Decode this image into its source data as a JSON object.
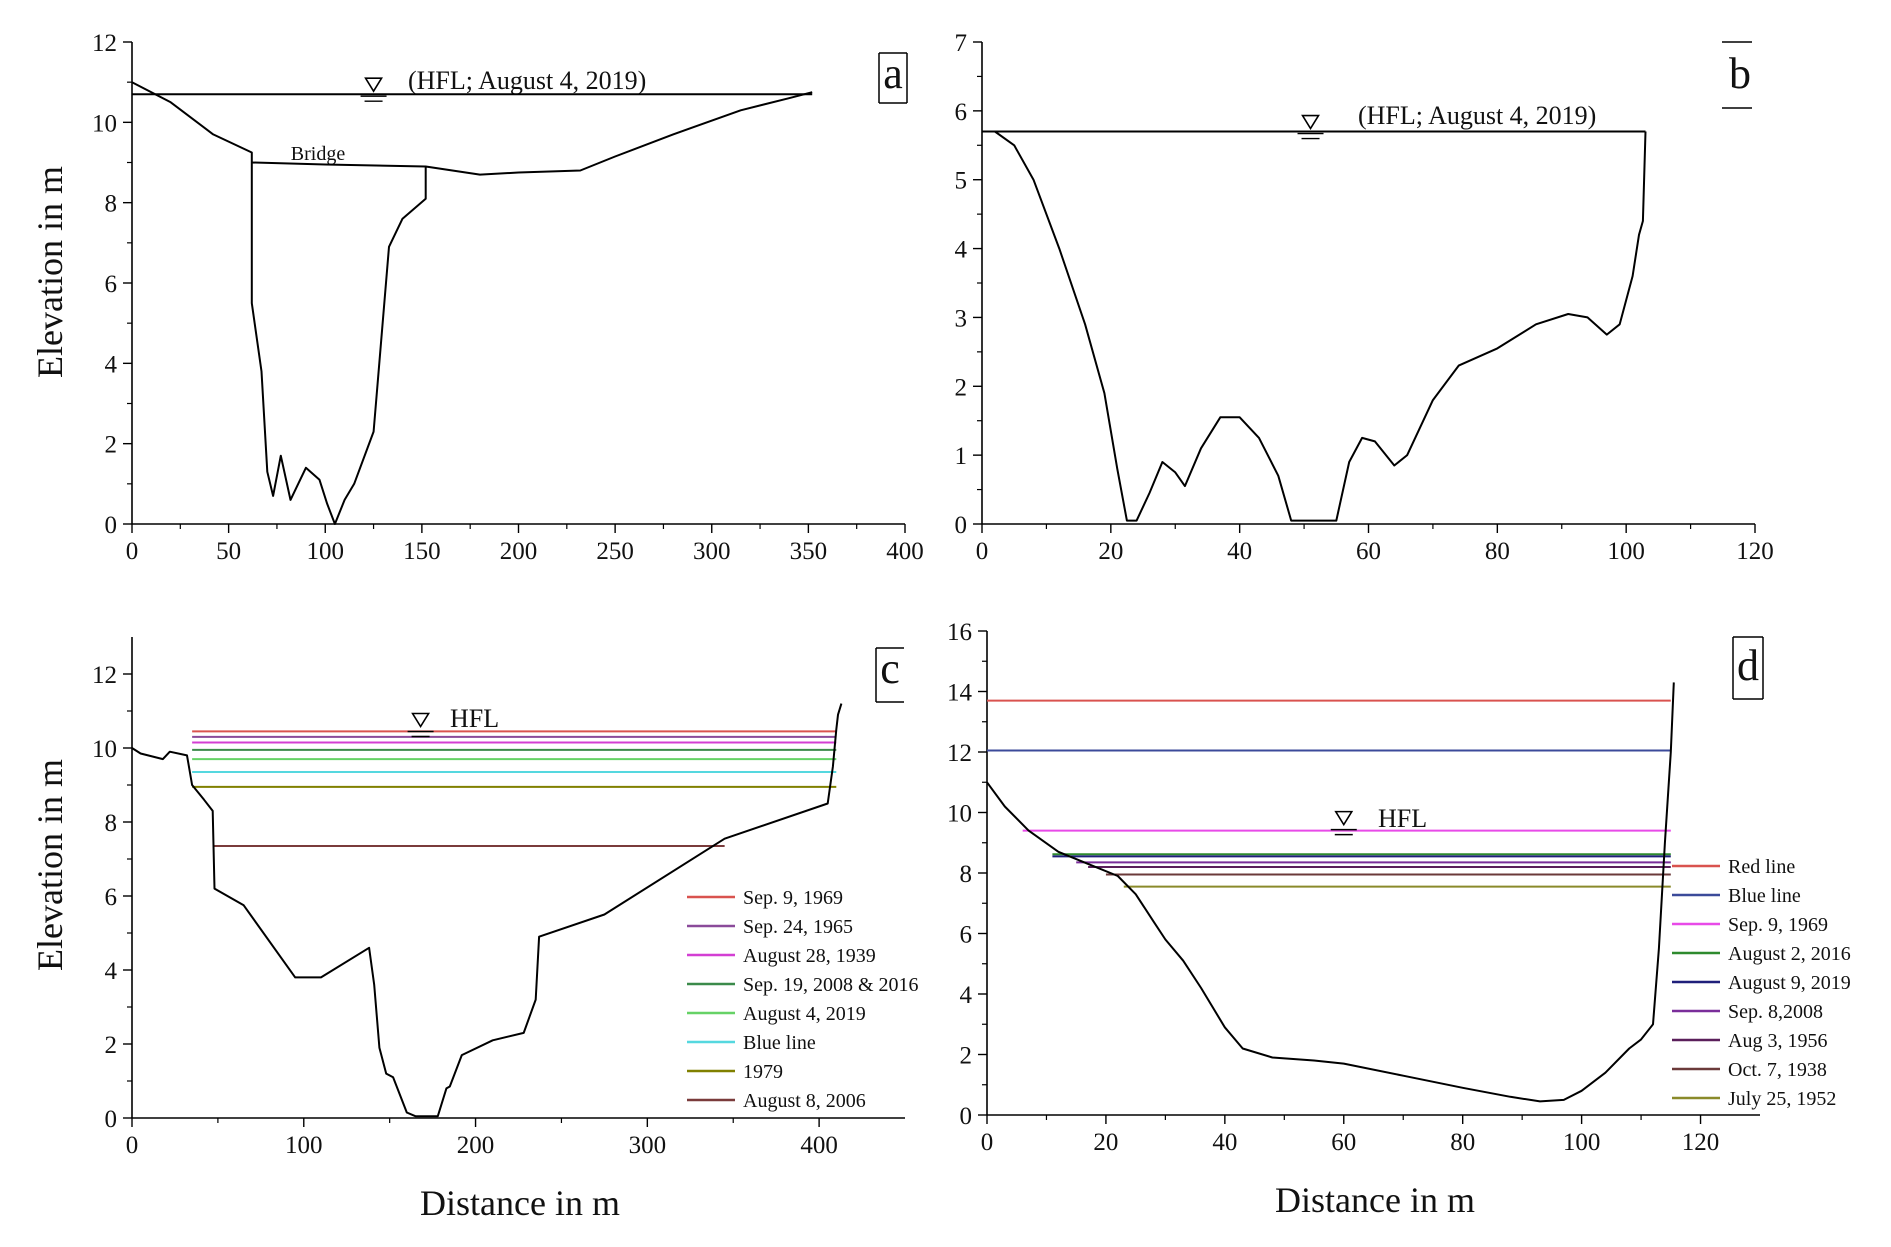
{
  "chart_data": [
    {
      "panel": "a",
      "type": "line",
      "ylabel": "Elevation in m",
      "xlim": [
        0,
        400
      ],
      "ylim": [
        0,
        12
      ],
      "x_ticks": [
        0,
        50,
        100,
        150,
        200,
        250,
        300,
        350,
        400
      ],
      "y_ticks": [
        0,
        2,
        4,
        6,
        8,
        10,
        12
      ],
      "annotations": {
        "hfl": "(HFL; August 4, 2019)",
        "bridge": "Bridge"
      },
      "hfl_level": 10.7,
      "hfl_symbol_x": 125,
      "series": [
        {
          "name": "",
          "color": "#000000",
          "points": [
            [
              0,
              11.0
            ],
            [
              20,
              10.5
            ],
            [
              42,
              9.7
            ],
            [
              62,
              9.25
            ],
            [
              62,
              5.5
            ],
            [
              67,
              3.8
            ],
            [
              70,
              1.3
            ],
            [
              73,
              0.7
            ],
            [
              77,
              1.7
            ],
            [
              82,
              0.6
            ],
            [
              90,
              1.4
            ],
            [
              97,
              1.1
            ],
            [
              101,
              0.5
            ],
            [
              105,
              0.0
            ],
            [
              110,
              0.6
            ],
            [
              115,
              1.0
            ],
            [
              125,
              2.3
            ],
            [
              133,
              6.9
            ],
            [
              140,
              7.6
            ],
            [
              152,
              8.1
            ],
            [
              152,
              8.9
            ],
            [
              180,
              8.7
            ],
            [
              200,
              8.75
            ],
            [
              232,
              8.8
            ],
            [
              250,
              9.15
            ],
            [
              280,
              9.7
            ],
            [
              315,
              10.3
            ],
            [
              340,
              10.6
            ],
            [
              352,
              10.75
            ]
          ]
        },
        {
          "name": "",
          "color": "#000000",
          "points": [
            [
              62,
              9.0
            ],
            [
              100,
              8.95
            ],
            [
              152,
              8.9
            ]
          ]
        },
        {
          "name": "",
          "color": "#000000",
          "points": [
            [
              0,
              10.7
            ],
            [
              352,
              10.7
            ]
          ]
        }
      ]
    },
    {
      "panel": "b",
      "type": "line",
      "xlim": [
        0,
        120
      ],
      "ylim": [
        0,
        7
      ],
      "x_ticks": [
        0,
        20,
        40,
        60,
        80,
        100,
        120
      ],
      "y_ticks": [
        0,
        1,
        2,
        3,
        4,
        5,
        6,
        7
      ],
      "annotations": {
        "hfl": "(HFL; August 4, 2019)"
      },
      "hfl_level": 5.7,
      "hfl_symbol_x": 51,
      "series": [
        {
          "name": "",
          "color": "#000000",
          "points": [
            [
              0,
              5.7
            ],
            [
              2,
              5.7
            ],
            [
              5,
              5.5
            ],
            [
              8,
              5.0
            ],
            [
              12,
              4.0
            ],
            [
              16,
              2.9
            ],
            [
              19,
              1.9
            ],
            [
              21,
              0.8
            ],
            [
              22.5,
              0.05
            ],
            [
              24,
              0.05
            ],
            [
              26,
              0.45
            ],
            [
              28,
              0.9
            ],
            [
              30,
              0.75
            ],
            [
              31.5,
              0.55
            ],
            [
              34,
              1.1
            ],
            [
              37,
              1.55
            ],
            [
              40,
              1.55
            ],
            [
              43,
              1.25
            ],
            [
              46,
              0.7
            ],
            [
              48,
              0.05
            ],
            [
              55,
              0.05
            ],
            [
              57,
              0.9
            ],
            [
              59,
              1.25
            ],
            [
              61,
              1.2
            ],
            [
              64,
              0.85
            ],
            [
              66,
              1.0
            ],
            [
              70,
              1.8
            ],
            [
              74,
              2.3
            ],
            [
              80,
              2.55
            ],
            [
              86,
              2.9
            ],
            [
              91,
              3.05
            ],
            [
              94,
              3.0
            ],
            [
              97,
              2.75
            ],
            [
              99,
              2.9
            ],
            [
              101,
              3.6
            ],
            [
              102,
              4.2
            ],
            [
              102.6,
              4.4
            ],
            [
              103,
              5.7
            ]
          ]
        },
        {
          "name": "",
          "color": "#000000",
          "points": [
            [
              0,
              5.7
            ],
            [
              103,
              5.7
            ]
          ]
        }
      ]
    },
    {
      "panel": "c",
      "type": "line",
      "xlabel": "Distance in m",
      "ylabel": "Elevation in m",
      "xlim": [
        0,
        450
      ],
      "ylim": [
        0,
        13
      ],
      "x_ticks": [
        0,
        100,
        200,
        300,
        400
      ],
      "y_ticks": [
        0,
        2,
        4,
        6,
        8,
        10,
        12
      ],
      "annotations": {
        "hfl": "HFL"
      },
      "hfl_symbol_x": 168,
      "hfl_symbol_level": 10.5,
      "profile": [
        [
          0,
          10.0
        ],
        [
          5,
          9.85
        ],
        [
          18,
          9.7
        ],
        [
          22,
          9.9
        ],
        [
          32,
          9.8
        ],
        [
          35,
          9.0
        ],
        [
          42,
          8.6
        ],
        [
          47,
          8.3
        ],
        [
          48,
          6.2
        ],
        [
          65,
          5.75
        ],
        [
          95,
          3.8
        ],
        [
          110,
          3.8
        ],
        [
          138,
          4.6
        ],
        [
          141,
          3.6
        ],
        [
          144,
          1.9
        ],
        [
          148,
          1.2
        ],
        [
          152,
          1.1
        ],
        [
          160,
          0.15
        ],
        [
          165,
          0.05
        ],
        [
          178,
          0.05
        ],
        [
          183,
          0.8
        ],
        [
          185,
          0.85
        ],
        [
          192,
          1.7
        ],
        [
          210,
          2.1
        ],
        [
          228,
          2.3
        ],
        [
          235,
          3.2
        ],
        [
          237,
          4.9
        ],
        [
          275,
          5.5
        ],
        [
          345,
          7.55
        ],
        [
          405,
          8.5
        ],
        [
          408,
          9.5
        ],
        [
          410,
          10.5
        ],
        [
          411,
          10.9
        ],
        [
          413,
          11.2
        ]
      ],
      "levels": [
        {
          "name": "Sep. 9, 1969",
          "value": 10.45,
          "color": "#d9534f",
          "x": [
            35,
            410
          ]
        },
        {
          "name": "Sep. 24, 1965",
          "value": 10.3,
          "color": "#8a4a9a",
          "x": [
            35,
            410
          ]
        },
        {
          "name": "August 28, 1939",
          "value": 10.15,
          "color": "#d33fd3",
          "x": [
            35,
            410
          ]
        },
        {
          "name": "Sep. 19, 2008 & 2016",
          "value": 9.95,
          "color": "#3b8a4a",
          "x": [
            35,
            410
          ]
        },
        {
          "name": "August 4, 2019",
          "value": 9.7,
          "color": "#66d266",
          "x": [
            35,
            410
          ]
        },
        {
          "name": "Blue line",
          "value": 9.35,
          "color": "#55d8df",
          "x": [
            35,
            410
          ]
        },
        {
          "name": "1979",
          "value": 8.95,
          "color": "#808000",
          "x": [
            35,
            410
          ]
        },
        {
          "name": "August 8,  2006",
          "value": 7.35,
          "color": "#7a3b3b",
          "x": [
            48,
            345
          ]
        }
      ]
    },
    {
      "panel": "d",
      "type": "line",
      "xlabel": "Distance in m",
      "xlim": [
        0,
        130
      ],
      "ylim": [
        0,
        16
      ],
      "x_ticks": [
        0,
        20,
        40,
        60,
        80,
        100,
        120
      ],
      "y_ticks": [
        0,
        2,
        4,
        6,
        8,
        10,
        12,
        14,
        16
      ],
      "annotations": {
        "hfl": "HFL"
      },
      "hfl_symbol_x": 60,
      "hfl_symbol_level": 9.5,
      "profile": [
        [
          0,
          11.0
        ],
        [
          3,
          10.2
        ],
        [
          7,
          9.4
        ],
        [
          12,
          8.7
        ],
        [
          17,
          8.3
        ],
        [
          22,
          7.9
        ],
        [
          25,
          7.3
        ],
        [
          28,
          6.4
        ],
        [
          30,
          5.8
        ],
        [
          33,
          5.1
        ],
        [
          36,
          4.2
        ],
        [
          40,
          2.9
        ],
        [
          43,
          2.2
        ],
        [
          48,
          1.9
        ],
        [
          55,
          1.8
        ],
        [
          60,
          1.7
        ],
        [
          70,
          1.3
        ],
        [
          80,
          0.9
        ],
        [
          88,
          0.6
        ],
        [
          93,
          0.45
        ],
        [
          97,
          0.5
        ],
        [
          100,
          0.8
        ],
        [
          104,
          1.4
        ],
        [
          108,
          2.2
        ],
        [
          110,
          2.5
        ],
        [
          112,
          3.0
        ],
        [
          113,
          5.5
        ],
        [
          114,
          9.0
        ],
        [
          115,
          12.0
        ],
        [
          115.5,
          14.3
        ]
      ],
      "levels": [
        {
          "name": "Red line",
          "value": 13.7,
          "color": "#d9534f",
          "x": [
            0,
            115
          ]
        },
        {
          "name": "Blue line",
          "value": 12.05,
          "color": "#3b4a9a",
          "x": [
            0,
            115
          ]
        },
        {
          "name": "Sep. 9, 1969",
          "value": 9.4,
          "color": "#e84ae8",
          "x": [
            6,
            115
          ]
        },
        {
          "name": "August 2, 2016",
          "value": 8.62,
          "color": "#2e8a2e",
          "x": [
            11,
            115
          ]
        },
        {
          "name": "August 9, 2019",
          "value": 8.55,
          "color": "#1f1f7a",
          "x": [
            11,
            115
          ]
        },
        {
          "name": "Sep. 8,2008",
          "value": 8.35,
          "color": "#7a2e9a",
          "x": [
            15,
            115
          ]
        },
        {
          "name": "Aug 3, 1956",
          "value": 8.2,
          "color": "#5a1f5a",
          "x": [
            17,
            115
          ]
        },
        {
          "name": "Oct. 7, 1938",
          "value": 7.95,
          "color": "#6b3a3a",
          "x": [
            20,
            115
          ]
        },
        {
          "name": "July 25, 1952",
          "value": 7.55,
          "color": "#8a8a2a",
          "x": [
            23,
            115
          ]
        }
      ]
    }
  ]
}
